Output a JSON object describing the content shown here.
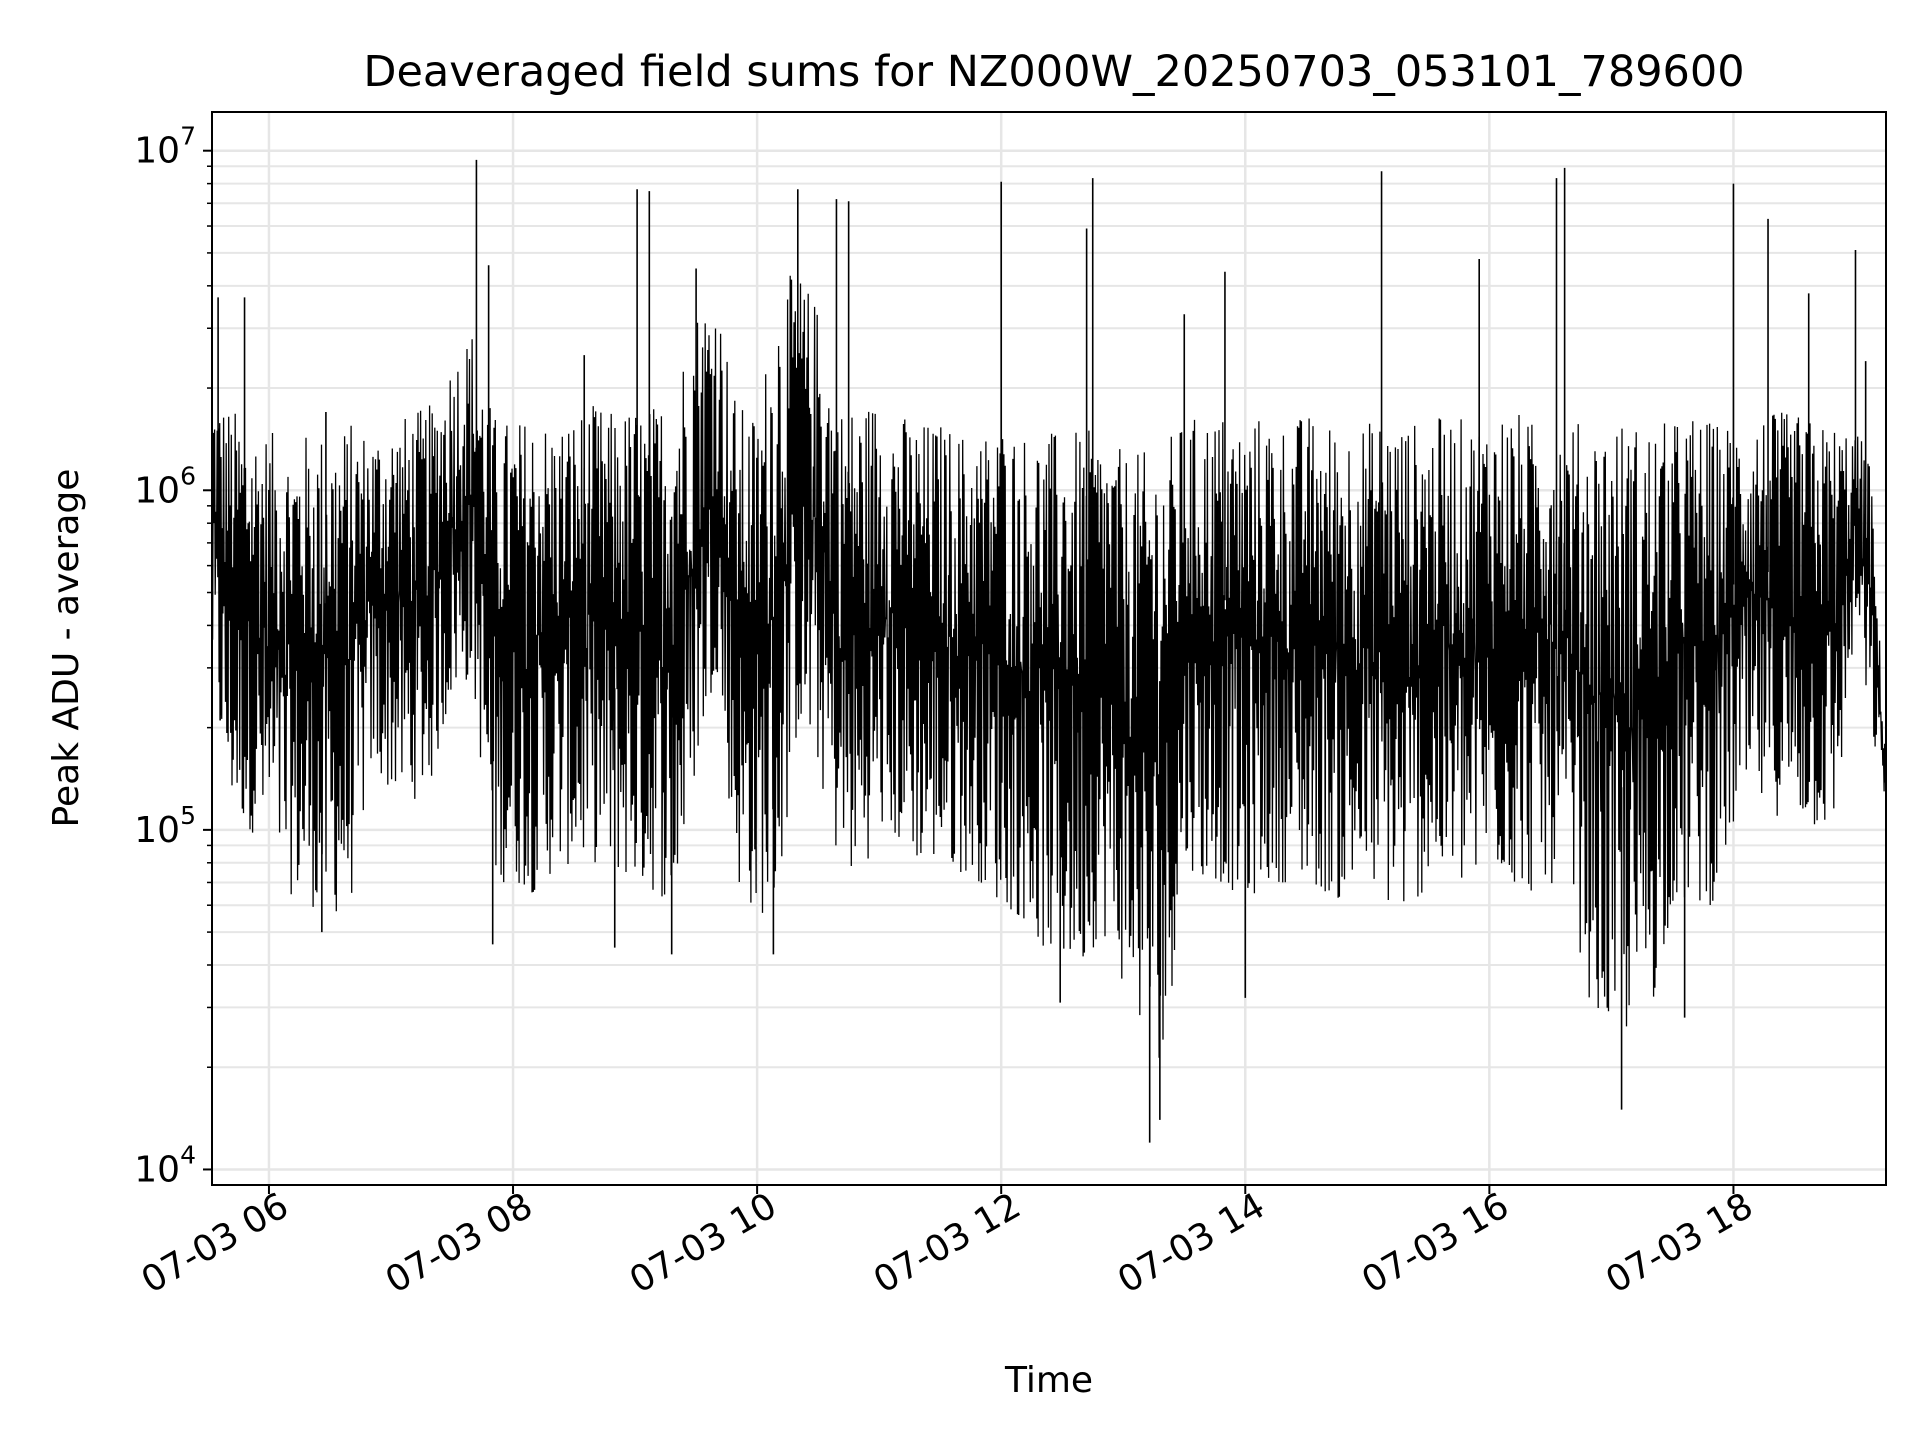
{
  "chart_data": {
    "type": "line",
    "title": "Deaveraged field sums for NZ000W_20250703_053101_789600",
    "xlabel": "Time",
    "ylabel": "Peak ADU - average",
    "yscale": "log",
    "ylim": [
      9000,
      13000000
    ],
    "xlim": [
      "2025-07-03 05:32",
      "2025-07-03 19:15"
    ],
    "grid": true,
    "line_color": "#000000",
    "grid_color": "#e6e6e6",
    "x_ticks": [
      {
        "value": "2025-07-03 06:00",
        "label": "07-03 06"
      },
      {
        "value": "2025-07-03 08:00",
        "label": "07-03 08"
      },
      {
        "value": "2025-07-03 10:00",
        "label": "07-03 10"
      },
      {
        "value": "2025-07-03 12:00",
        "label": "07-03 12"
      },
      {
        "value": "2025-07-03 14:00",
        "label": "07-03 14"
      },
      {
        "value": "2025-07-03 16:00",
        "label": "07-03 16"
      },
      {
        "value": "2025-07-03 18:00",
        "label": "07-03 18"
      }
    ],
    "y_ticks": [
      {
        "value": 10000,
        "base": "10",
        "exp": "4"
      },
      {
        "value": 100000,
        "base": "10",
        "exp": "5"
      },
      {
        "value": 1000000,
        "base": "10",
        "exp": "6"
      },
      {
        "value": 10000000,
        "base": "10",
        "exp": "7"
      }
    ],
    "series": [
      {
        "name": "",
        "x": [
          "2025-07-03 05:32",
          "2025-07-03 05:40",
          "2025-07-03 05:50",
          "2025-07-03 06:00",
          "2025-07-03 06:10",
          "2025-07-03 06:20",
          "2025-07-03 06:30",
          "2025-07-03 06:40",
          "2025-07-03 06:50",
          "2025-07-03 07:00",
          "2025-07-03 07:10",
          "2025-07-03 07:20",
          "2025-07-03 07:30",
          "2025-07-03 07:40",
          "2025-07-03 07:50",
          "2025-07-03 08:00",
          "2025-07-03 08:10",
          "2025-07-03 08:20",
          "2025-07-03 08:30",
          "2025-07-03 08:40",
          "2025-07-03 08:50",
          "2025-07-03 09:00",
          "2025-07-03 09:10",
          "2025-07-03 09:20",
          "2025-07-03 09:30",
          "2025-07-03 09:40",
          "2025-07-03 09:50",
          "2025-07-03 10:00",
          "2025-07-03 10:10",
          "2025-07-03 10:20",
          "2025-07-03 10:30",
          "2025-07-03 10:40",
          "2025-07-03 10:50",
          "2025-07-03 11:00",
          "2025-07-03 11:10",
          "2025-07-03 11:20",
          "2025-07-03 11:30",
          "2025-07-03 11:40",
          "2025-07-03 11:50",
          "2025-07-03 12:00",
          "2025-07-03 12:10",
          "2025-07-03 12:20",
          "2025-07-03 12:30",
          "2025-07-03 12:40",
          "2025-07-03 12:50",
          "2025-07-03 13:00",
          "2025-07-03 13:10",
          "2025-07-03 13:20",
          "2025-07-03 13:30",
          "2025-07-03 13:40",
          "2025-07-03 13:50",
          "2025-07-03 14:00",
          "2025-07-03 14:10",
          "2025-07-03 14:20",
          "2025-07-03 14:30",
          "2025-07-03 14:40",
          "2025-07-03 14:50",
          "2025-07-03 15:00",
          "2025-07-03 15:10",
          "2025-07-03 15:20",
          "2025-07-03 15:30",
          "2025-07-03 15:40",
          "2025-07-03 15:50",
          "2025-07-03 16:00",
          "2025-07-03 16:10",
          "2025-07-03 16:20",
          "2025-07-03 16:30",
          "2025-07-03 16:40",
          "2025-07-03 16:50",
          "2025-07-03 17:00",
          "2025-07-03 17:10",
          "2025-07-03 17:20",
          "2025-07-03 17:30",
          "2025-07-03 17:40",
          "2025-07-03 17:50",
          "2025-07-03 18:00",
          "2025-07-03 18:10",
          "2025-07-03 18:20",
          "2025-07-03 18:30",
          "2025-07-03 18:40",
          "2025-07-03 18:50",
          "2025-07-03 19:00",
          "2025-07-03 19:07",
          "2025-07-03 19:15"
        ],
        "low": [
          300000,
          120000,
          100000,
          90000,
          65000,
          60000,
          55000,
          60000,
          150000,
          130000,
          120000,
          140000,
          250000,
          280000,
          70000,
          70000,
          65000,
          75000,
          80000,
          80000,
          75000,
          70000,
          65000,
          60000,
          150000,
          300000,
          70000,
          55000,
          60000,
          200000,
          150000,
          80000,
          70000,
          100000,
          90000,
          80000,
          80000,
          75000,
          70000,
          60000,
          55000,
          45000,
          40000,
          40000,
          50000,
          35000,
          25000,
          20000,
          80000,
          70000,
          70000,
          60000,
          70000,
          70000,
          70000,
          65000,
          60000,
          70000,
          60000,
          55000,
          70000,
          70000,
          65000,
          80000,
          70000,
          65000,
          70000,
          60000,
          30000,
          25000,
          25000,
          30000,
          60000,
          60000,
          60000,
          100000,
          120000,
          110000,
          110000,
          100000,
          100000,
          400000,
          200000,
          120000
        ],
        "high": [
          2000000,
          1800000,
          1600000,
          1500000,
          1400000,
          1500000,
          1500000,
          1600000,
          1500000,
          1600000,
          1700000,
          1800000,
          2500000,
          3000000,
          1700000,
          1600000,
          1700000,
          1600000,
          1700000,
          1800000,
          1700000,
          1800000,
          1800000,
          2200000,
          3500000,
          4000000,
          1800000,
          1700000,
          4000000,
          4500000,
          3500000,
          1800000,
          1800000,
          1900000,
          1700000,
          1600000,
          1600000,
          1500000,
          1500000,
          1600000,
          1500000,
          1500000,
          1500000,
          1500000,
          1500000,
          1300000,
          1300000,
          1400000,
          1600000,
          1700000,
          1700000,
          1600000,
          1700000,
          1600000,
          1700000,
          1600000,
          1600000,
          1600000,
          1700000,
          1600000,
          1600000,
          1700000,
          1600000,
          1700000,
          1800000,
          1600000,
          1700000,
          1600000,
          1600000,
          1700000,
          1600000,
          1600000,
          1600000,
          1700000,
          1600000,
          1600000,
          1700000,
          1700000,
          1700000,
          1600000,
          1600000,
          1500000,
          1300000,
          160000
        ],
        "spikes": [
          {
            "x": "2025-07-03 05:35",
            "y": 3700000
          },
          {
            "x": "2025-07-03 05:48",
            "y": 3700000
          },
          {
            "x": "2025-07-03 06:28",
            "y": 1700000
          },
          {
            "x": "2025-07-03 07:42",
            "y": 9400000
          },
          {
            "x": "2025-07-03 07:48",
            "y": 4600000
          },
          {
            "x": "2025-07-03 08:35",
            "y": 2500000
          },
          {
            "x": "2025-07-03 09:01",
            "y": 7700000
          },
          {
            "x": "2025-07-03 09:07",
            "y": 7600000
          },
          {
            "x": "2025-07-03 09:30",
            "y": 4500000
          },
          {
            "x": "2025-07-03 10:20",
            "y": 7700000
          },
          {
            "x": "2025-07-03 10:39",
            "y": 7200000
          },
          {
            "x": "2025-07-03 10:45",
            "y": 7100000
          },
          {
            "x": "2025-07-03 12:00",
            "y": 8100000
          },
          {
            "x": "2025-07-03 12:42",
            "y": 5900000
          },
          {
            "x": "2025-07-03 12:45",
            "y": 8300000
          },
          {
            "x": "2025-07-03 13:30",
            "y": 3300000
          },
          {
            "x": "2025-07-03 13:50",
            "y": 4400000
          },
          {
            "x": "2025-07-03 15:07",
            "y": 8700000
          },
          {
            "x": "2025-07-03 15:55",
            "y": 4800000
          },
          {
            "x": "2025-07-03 16:33",
            "y": 8300000
          },
          {
            "x": "2025-07-03 16:37",
            "y": 8900000
          },
          {
            "x": "2025-07-03 18:00",
            "y": 8000000
          },
          {
            "x": "2025-07-03 18:17",
            "y": 6300000
          },
          {
            "x": "2025-07-03 18:37",
            "y": 3800000
          },
          {
            "x": "2025-07-03 19:00",
            "y": 5100000
          },
          {
            "x": "2025-07-03 19:05",
            "y": 2400000
          }
        ],
        "dips": [
          {
            "x": "2025-07-03 05:36",
            "y": 210000
          },
          {
            "x": "2025-07-03 06:26",
            "y": 50000
          },
          {
            "x": "2025-07-03 07:50",
            "y": 46000
          },
          {
            "x": "2025-07-03 08:50",
            "y": 45000
          },
          {
            "x": "2025-07-03 09:18",
            "y": 43000
          },
          {
            "x": "2025-07-03 10:08",
            "y": 43000
          },
          {
            "x": "2025-07-03 12:29",
            "y": 31000
          },
          {
            "x": "2025-07-03 13:13",
            "y": 12000
          },
          {
            "x": "2025-07-03 13:18",
            "y": 14000
          },
          {
            "x": "2025-07-03 14:00",
            "y": 32000
          },
          {
            "x": "2025-07-03 17:05",
            "y": 15000
          },
          {
            "x": "2025-07-03 17:36",
            "y": 28000
          }
        ]
      }
    ]
  }
}
